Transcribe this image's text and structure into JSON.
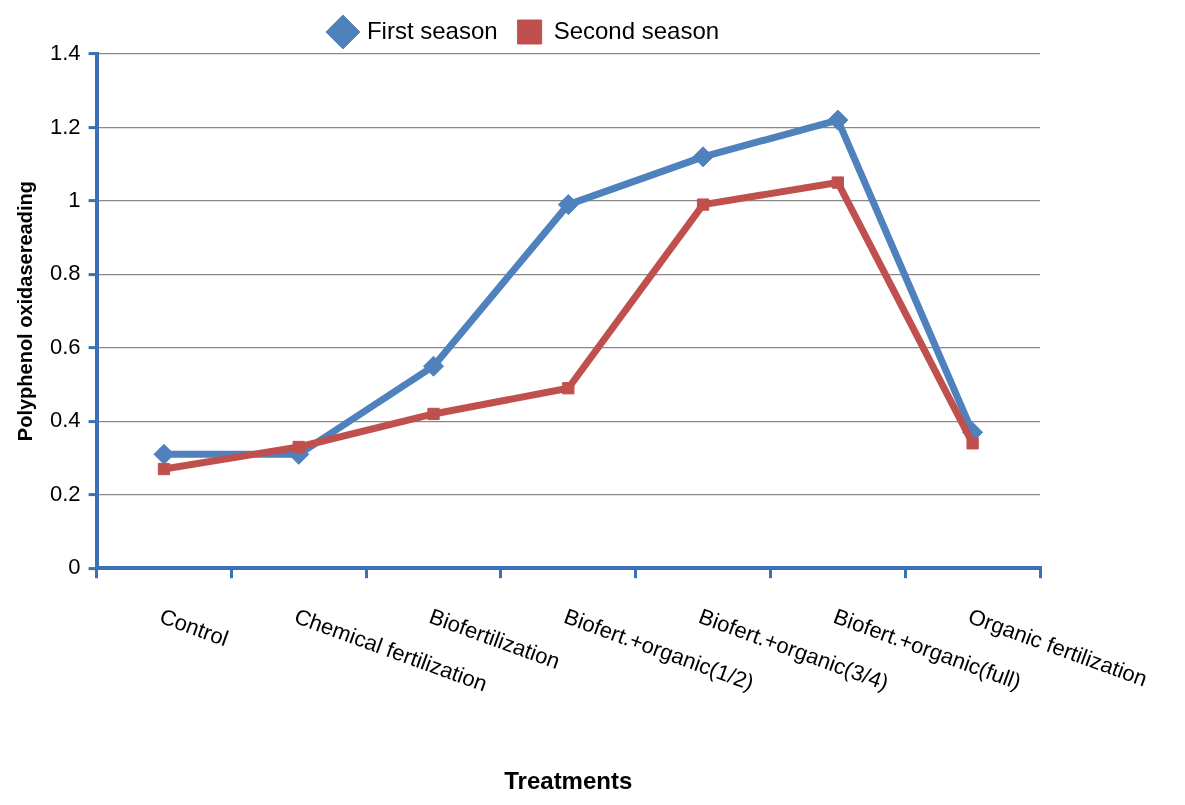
{
  "chart_data": {
    "type": "line",
    "xlabel": "Treatments",
    "ylabel": "Polyphenol oxidasereading",
    "categories": [
      "Control",
      "Chemical fertilization",
      "Biofertilization",
      "Biofert.+organic(1/2)",
      "Biofert.+organic(3/4)",
      "Biofert.+organic(full)",
      "Organic fertilization"
    ],
    "series": [
      {
        "name": "First season",
        "color": "#4f81bd",
        "marker": "diamond",
        "values": [
          0.31,
          0.31,
          0.55,
          0.99,
          1.12,
          1.22,
          0.37
        ]
      },
      {
        "name": "Second season",
        "color": "#c0504d",
        "marker": "square",
        "values": [
          0.27,
          0.33,
          0.42,
          0.49,
          0.99,
          1.05,
          0.34
        ]
      }
    ],
    "ylim": [
      0,
      1.4
    ],
    "yticks": [
      0,
      0.2,
      0.4,
      0.6,
      0.8,
      1,
      1.2,
      1.4
    ],
    "grid": "y",
    "legend": "top",
    "line_style": "solid"
  }
}
